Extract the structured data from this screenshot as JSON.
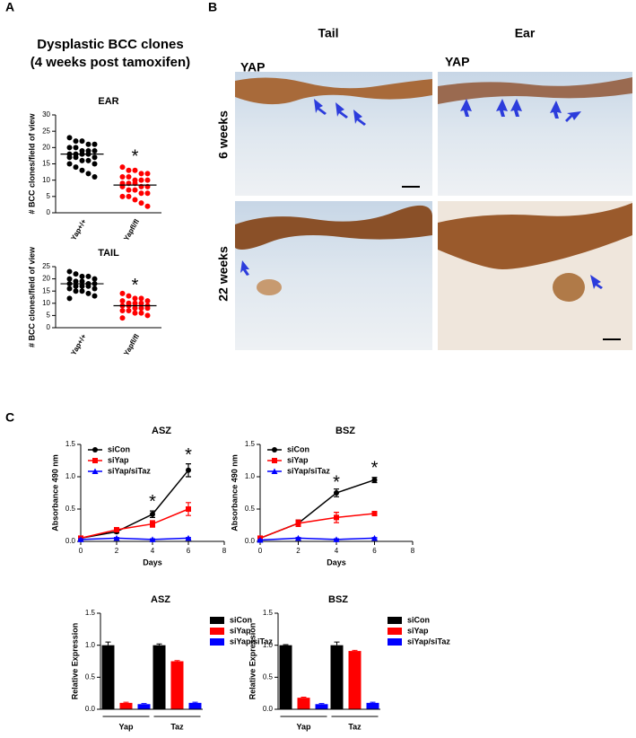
{
  "panels": {
    "a": "A",
    "b": "B",
    "c": "C"
  },
  "panel_a_title": [
    "Dysplastic BCC clones",
    "(4 weeks post tamoxifen)"
  ],
  "histology": {
    "columns": [
      "Tail",
      "Ear"
    ],
    "rows": [
      "6 weeks",
      "22 weeks"
    ],
    "stain": "YAP"
  },
  "chart_data": [
    {
      "type": "dot",
      "title": "EAR",
      "ylabel": "# BCC clones/field of view",
      "categories": [
        "Yap+/+",
        "Yapfl/fl"
      ],
      "ylim": [
        0,
        30
      ],
      "yticks": [
        0,
        5,
        10,
        15,
        20,
        25,
        30
      ],
      "groups": [
        {
          "color": "#000000",
          "mean": 18,
          "values": [
            23,
            22,
            22,
            21,
            21,
            20,
            20,
            19,
            19,
            19,
            18,
            18,
            18,
            18,
            17,
            17,
            17,
            16,
            16,
            15,
            15,
            14,
            13,
            12,
            11
          ]
        },
        {
          "color": "#ff0000",
          "mean": 8.5,
          "values": [
            14,
            13,
            13,
            12,
            12,
            11,
            11,
            10,
            10,
            10,
            9,
            9,
            9,
            8,
            8,
            8,
            7,
            7,
            6,
            6,
            5,
            5,
            4,
            3,
            2
          ]
        }
      ],
      "annotations": [
        {
          "text": "*",
          "x": 1,
          "y": 17
        }
      ]
    },
    {
      "type": "dot",
      "title": "TAIL",
      "ylabel": "# BCC clones/field of view",
      "categories": [
        "Yap+/+",
        "Yapfl/fl"
      ],
      "ylim": [
        0,
        25
      ],
      "yticks": [
        0,
        5,
        10,
        15,
        20,
        25
      ],
      "groups": [
        {
          "color": "#000000",
          "mean": 18,
          "values": [
            23,
            22,
            21,
            21,
            20,
            20,
            19,
            19,
            18,
            18,
            18,
            17,
            17,
            17,
            16,
            16,
            15,
            15,
            14,
            13,
            12
          ]
        },
        {
          "color": "#ff0000",
          "mean": 9,
          "values": [
            14,
            13,
            12,
            12,
            11,
            11,
            10,
            10,
            10,
            9,
            9,
            9,
            8,
            8,
            8,
            7,
            7,
            6,
            6,
            5,
            4
          ]
        }
      ],
      "annotations": [
        {
          "text": "*",
          "x": 1,
          "y": 17
        }
      ]
    },
    {
      "type": "line",
      "title": "ASZ",
      "xlabel": "Days",
      "ylabel": "Absorbance 490 nm",
      "legend": "upper left",
      "x": [
        0,
        2,
        4,
        6
      ],
      "xlim": [
        0,
        8
      ],
      "xticks": [
        0,
        2,
        4,
        6,
        8
      ],
      "ylim": [
        0,
        1.5
      ],
      "yticks": [
        {
          "value": 0,
          "label": "0.0"
        },
        {
          "value": 0.5,
          "label": "0.5"
        },
        {
          "value": 1,
          "label": "1.0"
        },
        {
          "value": 1.5,
          "label": "1.5"
        }
      ],
      "series": [
        {
          "name": "siCon",
          "color": "#000000",
          "marker": "circle",
          "values": [
            0.05,
            0.15,
            0.42,
            1.1
          ],
          "errors": [
            0.01,
            0.02,
            0.05,
            0.1
          ]
        },
        {
          "name": "siYap",
          "color": "#ff0000",
          "marker": "square",
          "values": [
            0.05,
            0.18,
            0.27,
            0.5
          ],
          "errors": [
            0.01,
            0.03,
            0.05,
            0.1
          ]
        },
        {
          "name": "siYap/siTaz",
          "color": "#0000ff",
          "marker": "triangle",
          "values": [
            0.03,
            0.05,
            0.03,
            0.05
          ],
          "errors": [
            0.01,
            0.01,
            0.01,
            0.01
          ]
        }
      ],
      "annotations": [
        {
          "text": "*",
          "x": 4,
          "y": 0.6
        },
        {
          "text": "*",
          "x": 6,
          "y": 1.32
        }
      ]
    },
    {
      "type": "line",
      "title": "BSZ",
      "xlabel": "Days",
      "ylabel": "Absorbance 490 nm",
      "legend": "upper left",
      "x": [
        0,
        2,
        4,
        6
      ],
      "xlim": [
        0,
        8
      ],
      "xticks": [
        0,
        2,
        4,
        6,
        8
      ],
      "ylim": [
        0,
        1.5
      ],
      "yticks": [
        {
          "value": 0,
          "label": "0.0"
        },
        {
          "value": 0.5,
          "label": "0.5"
        },
        {
          "value": 1,
          "label": "1.0"
        },
        {
          "value": 1.5,
          "label": "1.5"
        }
      ],
      "series": [
        {
          "name": "siCon",
          "color": "#000000",
          "marker": "circle",
          "values": [
            0.05,
            0.28,
            0.75,
            0.95
          ],
          "errors": [
            0.01,
            0.05,
            0.06,
            0.04
          ]
        },
        {
          "name": "siYap",
          "color": "#ff0000",
          "marker": "square",
          "values": [
            0.05,
            0.28,
            0.37,
            0.43
          ],
          "errors": [
            0.01,
            0.05,
            0.08,
            0.03
          ]
        },
        {
          "name": "siYap/siTaz",
          "color": "#0000ff",
          "marker": "triangle",
          "values": [
            0.02,
            0.05,
            0.03,
            0.05
          ],
          "errors": [
            0.01,
            0.01,
            0.01,
            0.01
          ]
        }
      ],
      "annotations": [
        {
          "text": "*",
          "x": 4,
          "y": 0.9
        },
        {
          "text": "*",
          "x": 6,
          "y": 1.12
        }
      ]
    },
    {
      "type": "bar",
      "title": "ASZ",
      "ylabel": "Relative Expression",
      "legend": "right",
      "categories": [
        "Yap",
        "Taz"
      ],
      "ylim": [
        0,
        1.5
      ],
      "yticks": [
        {
          "value": 0,
          "label": "0.0"
        },
        {
          "value": 0.5,
          "label": "0.5"
        },
        {
          "value": 1,
          "label": "1.0"
        },
        {
          "value": 1.5,
          "label": "1.5"
        }
      ],
      "series": [
        {
          "name": "siCon",
          "color": "#000000",
          "values": [
            1.0,
            1.0
          ],
          "errors": [
            0.05,
            0.02
          ]
        },
        {
          "name": "siYap",
          "color": "#ff0000",
          "values": [
            0.1,
            0.75
          ],
          "errors": [
            0.01,
            0.01
          ]
        },
        {
          "name": "siYap/siTaz",
          "color": "#0000ff",
          "values": [
            0.08,
            0.1
          ],
          "errors": [
            0.01,
            0.01
          ]
        }
      ]
    },
    {
      "type": "bar",
      "title": "BSZ",
      "ylabel": "Relative Expression",
      "legend": "right",
      "categories": [
        "Yap",
        "Taz"
      ],
      "ylim": [
        0,
        1.5
      ],
      "yticks": [
        {
          "value": 0,
          "label": "0.0"
        },
        {
          "value": 0.5,
          "label": "0.5"
        },
        {
          "value": 1,
          "label": "1.0"
        },
        {
          "value": 1.5,
          "label": "1.5"
        }
      ],
      "series": [
        {
          "name": "siCon",
          "color": "#000000",
          "values": [
            1.0,
            1.0
          ],
          "errors": [
            0.01,
            0.05
          ]
        },
        {
          "name": "siYap",
          "color": "#ff0000",
          "values": [
            0.18,
            0.91
          ],
          "errors": [
            0.01,
            0.01
          ]
        },
        {
          "name": "siYap/siTaz",
          "color": "#0000ff",
          "values": [
            0.08,
            0.1
          ],
          "errors": [
            0.01,
            0.01
          ]
        }
      ]
    }
  ]
}
